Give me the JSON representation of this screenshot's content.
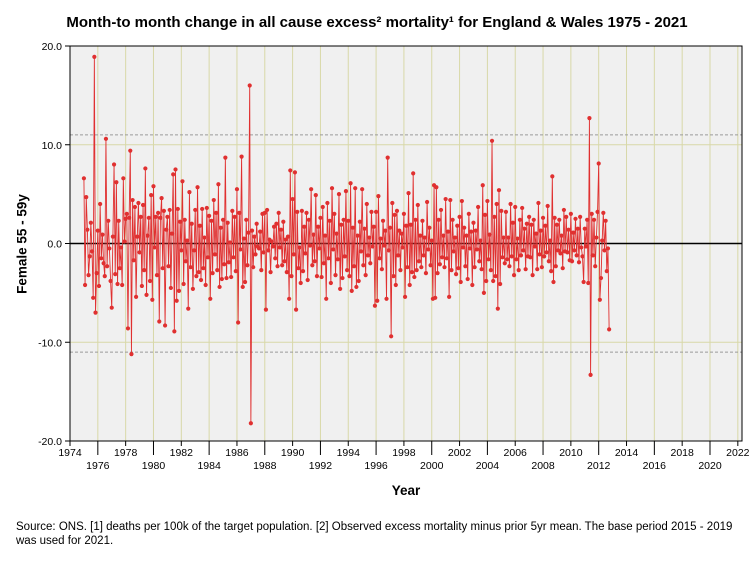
{
  "chart_data": {
    "type": "line",
    "title": "Month-to month change in all cause excess² mortality¹  for England & Wales 1975 - 2021",
    "xlabel": "Year",
    "ylabel": "Female 55 - 59y",
    "xlim": [
      1974,
      2022.3
    ],
    "ylim": [
      -20,
      20
    ],
    "x_ticks_upper": [
      1974,
      1978,
      1982,
      1986,
      1990,
      1994,
      1998,
      2002,
      2006,
      2010,
      2014,
      2018,
      2022
    ],
    "x_ticks_lower": [
      1976,
      1980,
      1984,
      1988,
      1992,
      1996,
      2000,
      2004,
      2008,
      2012,
      2016,
      2020
    ],
    "y_ticks": [
      -20,
      -10,
      0,
      10,
      20
    ],
    "y_tick_labels": [
      "-20.0",
      "-10.0",
      "0.0",
      "10.0",
      "20.0"
    ],
    "reference_lines": [
      11,
      -11
    ],
    "grid": true,
    "series": [
      {
        "color": "#e03030",
        "x_start": 1975.0,
        "x_step": 0.0833333,
        "values": [
          6.6,
          -4.2,
          4.7,
          1.4,
          -3.2,
          -1.3,
          2.1,
          -0.8,
          -5.5,
          18.9,
          -7.0,
          -3.0,
          1.3,
          -4.3,
          4.0,
          -1.5,
          0.9,
          -2.0,
          -3.3,
          10.6,
          -2.3,
          2.3,
          -0.5,
          -3.8,
          -6.5,
          0.7,
          8.0,
          -3.1,
          6.2,
          -4.1,
          2.3,
          -2.5,
          -0.4,
          -4.2,
          6.6,
          0.2,
          2.5,
          3.0,
          -8.6,
          2.6,
          9.4,
          -11.2,
          4.4,
          -1.7,
          3.7,
          -5.4,
          0.7,
          4.1,
          -0.9,
          2.7,
          -4.3,
          3.9,
          -2.7,
          7.6,
          -5.2,
          0.8,
          2.6,
          -3.8,
          4.9,
          -5.7,
          5.8,
          -0.4,
          2.7,
          -3.2,
          3.1,
          -7.9,
          2.6,
          4.6,
          -2.5,
          3.3,
          -8.3,
          1.4,
          2.7,
          -2.3,
          3.4,
          -4.5,
          1.0,
          7.0,
          -8.9,
          7.5,
          -5.8,
          3.5,
          -4.8,
          2.2,
          -0.7,
          6.3,
          -4.1,
          2.4,
          -1.8,
          0.3,
          -6.6,
          5.2,
          -2.4,
          2.0,
          -4.6,
          -0.7,
          3.4,
          -3.3,
          5.7,
          -2.9,
          1.8,
          -3.7,
          3.5,
          -2.5,
          0.6,
          -4.2,
          3.6,
          -1.4,
          2.8,
          -5.6,
          2.3,
          -3.0,
          4.4,
          -1.1,
          3.1,
          -2.7,
          6.0,
          -4.4,
          1.6,
          -3.6,
          2.4,
          -2.1,
          8.7,
          -3.5,
          2.1,
          -1.9,
          0.1,
          -3.4,
          3.3,
          -1.4,
          2.7,
          -2.8,
          5.5,
          -8.0,
          3.1,
          -0.6,
          8.8,
          -4.4,
          0.5,
          -3.9,
          2.4,
          -2.2,
          1.1,
          16.0,
          -18.2,
          1.3,
          -2.4,
          0.7,
          -1.1,
          2.0,
          -0.3,
          -0.5,
          1.2,
          -2.7,
          3.0,
          -0.9,
          3.1,
          -6.7,
          3.4,
          -0.7,
          0.4,
          -2.9,
          0.2,
          -0.3,
          1.7,
          -1.5,
          2.0,
          -2.3,
          3.1,
          -0.4,
          1.4,
          -2.2,
          2.2,
          -1.8,
          0.4,
          -2.9,
          0.7,
          -5.6,
          7.4,
          -3.3,
          4.5,
          -1.1,
          7.2,
          -6.7,
          3.2,
          -2.5,
          -0.4,
          -4.0,
          3.3,
          -2.8,
          1.7,
          -1.0,
          3.1,
          -3.7,
          2.4,
          -0.2,
          5.5,
          -2.2,
          0.9,
          -1.8,
          4.9,
          -3.3,
          1.7,
          -0.5,
          2.6,
          -3.4,
          3.7,
          -2.0,
          0.8,
          -5.6,
          4.1,
          -1.5,
          2.3,
          -4.0,
          5.6,
          -0.6,
          3.0,
          -3.2,
          1.0,
          -1.6,
          5.0,
          -4.6,
          1.9,
          -3.5,
          2.4,
          -1.3,
          5.3,
          -2.7,
          2.3,
          -3.3,
          6.1,
          -4.8,
          1.6,
          -2.3,
          5.6,
          -4.4,
          0.8,
          -3.8,
          2.2,
          -0.8,
          5.5,
          -2.2,
          1.5,
          -3.2,
          4.0,
          -1.2,
          0.6,
          -2.0,
          3.2,
          -0.3,
          1.7,
          -6.3,
          3.2,
          -5.8,
          4.8,
          -1.5,
          0.5,
          -2.6,
          2.3,
          -0.2,
          1.3,
          -5.6,
          8.7,
          -0.7,
          1.6,
          -9.4,
          4.1,
          -3.3,
          2.9,
          -4.2,
          3.3,
          -1.2,
          1.3,
          -2.7,
          1.0,
          -0.4,
          3.0,
          -5.4,
          1.8,
          -2.4,
          5.1,
          -4.2,
          1.9,
          -2.9,
          7.1,
          -3.4,
          2.4,
          -2.7,
          3.9,
          -1.8,
          0.8,
          -2.4,
          2.3,
          -1.2,
          0.6,
          -3.0,
          4.2,
          -0.6,
          1.6,
          -2.2,
          0.3,
          -5.6,
          5.9,
          -5.5,
          5.7,
          -3.0,
          2.4,
          -2.1,
          3.4,
          -1.4,
          0.8,
          -2.4,
          4.5,
          -1.5,
          1.2,
          -5.4,
          4.4,
          -2.7,
          2.4,
          -0.8,
          0.6,
          -3.1,
          1.8,
          -2.5,
          2.7,
          -3.9,
          4.3,
          -0.4,
          1.6,
          -2.3,
          0.8,
          -3.6,
          3.0,
          -0.5,
          1.2,
          -4.2,
          2.1,
          -2.4,
          1.3,
          -0.6,
          3.7,
          -1.8,
          0.3,
          -2.6,
          5.9,
          -5.0,
          2.9,
          -3.8,
          4.3,
          -1.6,
          0.9,
          -2.7,
          10.4,
          -3.8,
          2.7,
          -3.3,
          4.0,
          -6.6,
          5.4,
          -4.1,
          3.3,
          -1.4,
          0.6,
          -2.0,
          3.2,
          -1.6,
          0.6,
          -2.3,
          4.0,
          -1.3,
          2.1,
          -3.2,
          3.7,
          -1.6,
          0.5,
          -2.7,
          2.4,
          -1.2,
          3.6,
          -0.7,
          1.5,
          -2.6,
          2.0,
          -1.3,
          2.7,
          -1.4,
          1.9,
          -3.2,
          2.4,
          -0.3,
          1.0,
          -2.6,
          4.1,
          -1.1,
          1.3,
          -2.4,
          2.6,
          -1.3,
          1.8,
          -0.9,
          3.8,
          -1.8,
          0.3,
          -2.8,
          6.8,
          -3.9,
          2.6,
          -2.3,
          1.9,
          -0.7,
          2.4,
          -1.0,
          0.8,
          -2.5,
          3.4,
          -0.8,
          2.7,
          -0.9,
          1.4,
          -1.7,
          3.0,
          -1.8,
          1.1,
          -0.7,
          2.5,
          -1.2,
          1.5,
          -1.9,
          2.7,
          -0.4,
          -1.3,
          -3.9,
          1.5,
          -0.3,
          2.4,
          -4.0,
          12.7,
          -13.3,
          3.0,
          -1.2,
          2.4,
          -2.3,
          0.6,
          3.2,
          8.1,
          -5.7,
          -3.5,
          0.3,
          3.1,
          -0.7,
          2.3,
          -2.8,
          -0.5,
          -8.7
        ]
      }
    ]
  },
  "source_note": "Source: ONS. [1] deaths per 100k of the target population. [2] Observed excess mortality minus prior 5yr mean. The base period 2015 - 2019 was used for 2021."
}
